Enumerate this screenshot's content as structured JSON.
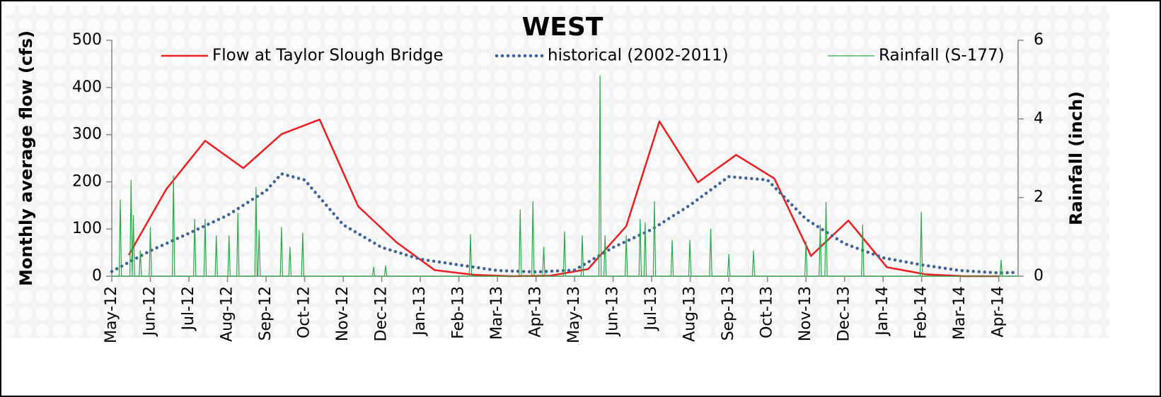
{
  "chart_data": {
    "type": "line",
    "title": "WEST",
    "ylabel": "Monthly average flow (cfs)",
    "y2label": "Rainfall (inch)",
    "xlim": [
      0,
      23.5
    ],
    "xticks": [
      {
        "value": 0,
        "label": "May-12"
      },
      {
        "value": 1,
        "label": "Jun-12"
      },
      {
        "value": 2,
        "label": "Jul-12"
      },
      {
        "value": 3,
        "label": "Aug-12"
      },
      {
        "value": 4,
        "label": "Sep-12"
      },
      {
        "value": 5,
        "label": "Oct-12"
      },
      {
        "value": 6,
        "label": "Nov-12"
      },
      {
        "value": 7,
        "label": "Dec-12"
      },
      {
        "value": 8,
        "label": "Jan-13"
      },
      {
        "value": 9,
        "label": "Feb-13"
      },
      {
        "value": 10,
        "label": "Mar-13"
      },
      {
        "value": 11,
        "label": "Apr-13"
      },
      {
        "value": 12,
        "label": "May-13"
      },
      {
        "value": 13,
        "label": "Jun-13"
      },
      {
        "value": 14,
        "label": "Jul-13"
      },
      {
        "value": 15,
        "label": "Aug-13"
      },
      {
        "value": 16,
        "label": "Sep-13"
      },
      {
        "value": 17,
        "label": "Oct-13"
      },
      {
        "value": 18,
        "label": "Nov-13"
      },
      {
        "value": 19,
        "label": "Dec-13"
      },
      {
        "value": 20,
        "label": "Jan-14"
      },
      {
        "value": 21,
        "label": "Feb-14"
      },
      {
        "value": 22,
        "label": "Mar-14"
      },
      {
        "value": 23,
        "label": "Apr-14"
      }
    ],
    "ylim": [
      0,
      500
    ],
    "yticks": [
      0,
      100,
      200,
      300,
      400,
      500
    ],
    "y2lim": [
      0,
      6
    ],
    "y2ticks": [
      0,
      2,
      4,
      6
    ],
    "legend": "top",
    "series": [
      {
        "name": "Flow at Taylor Slough Bridge",
        "color": "#ee1c1c",
        "line_style": "solid",
        "axis": "y",
        "x": [
          0.44,
          1.41,
          2.42,
          3.41,
          4.4,
          5.39,
          6.39,
          7.38,
          8.37,
          9.38,
          10.35,
          11.36,
          12.35,
          13.34,
          14.2,
          15.2,
          16.19,
          17.18,
          18.13,
          19.1,
          20.1,
          21.1,
          22.1,
          23.0
        ],
        "values": [
          45,
          184,
          287,
          229,
          301,
          332,
          148,
          72,
          13,
          3,
          0,
          1,
          15,
          106,
          328,
          199,
          257,
          207,
          43,
          118,
          19,
          4,
          0,
          0
        ]
      },
      {
        "name": "historical (2002-2011)",
        "color": "#3d6398",
        "line_style": "dotted",
        "axis": "y",
        "x": [
          0,
          1,
          2,
          3,
          4,
          4.4,
          5,
          6,
          7,
          8,
          9,
          10,
          11,
          12,
          13,
          14,
          15,
          16,
          17,
          18,
          19,
          20,
          21,
          22,
          23,
          23.5
        ],
        "values": [
          10,
          54,
          91,
          129,
          181,
          217,
          204,
          109,
          61,
          36,
          24,
          12,
          9,
          13,
          61,
          99,
          151,
          211,
          204,
          121,
          69,
          39,
          24,
          12,
          7,
          8
        ]
      },
      {
        "name": "Rainfall (S-177)",
        "color": "#2aa84a",
        "line_style": "thin",
        "axis": "y2",
        "x": [
          0,
          0.19,
          0.22,
          0.25,
          0.47,
          0.5,
          0.53,
          0.53,
          0.56,
          0.59,
          0.71,
          0.74,
          0.77,
          0.97,
          1.0,
          1.03,
          1.57,
          1.6,
          1.63,
          2.12,
          2.15,
          2.18,
          2.39,
          2.42,
          2.45,
          2.68,
          2.71,
          2.74,
          3.01,
          3.04,
          3.07,
          3.24,
          3.27,
          3.3,
          3.71,
          3.74,
          3.77,
          3.79,
          3.82,
          3.85,
          4.37,
          4.4,
          4.43,
          4.59,
          4.62,
          4.65,
          4.92,
          4.95,
          4.98,
          6.76,
          6.79,
          6.82,
          7.07,
          7.1,
          7.13,
          9.27,
          9.3,
          9.33,
          10.56,
          10.59,
          10.62,
          10.89,
          10.92,
          10.95,
          11.17,
          11.2,
          11.23,
          11.71,
          11.74,
          11.77,
          12.17,
          12.2,
          12.23,
          12.63,
          12.66,
          12.69,
          12.76,
          12.79,
          12.82,
          13.31,
          13.34,
          13.37,
          13.67,
          13.7,
          13.73,
          13.8,
          13.83,
          13.86,
          14.04,
          14.07,
          14.1,
          14.5,
          14.53,
          14.56,
          14.96,
          14.99,
          15.02,
          15.5,
          15.53,
          15.56,
          15.97,
          16.0,
          16.03,
          16.61,
          16.64,
          16.67,
          17.97,
          18.0,
          18.03,
          18.34,
          18.37,
          18.4,
          18.49,
          18.52,
          18.55,
          19.44,
          19.47,
          19.5,
          20.96,
          20.99,
          21.02,
          23.03,
          23.06,
          23.09,
          23.5
        ],
        "values": [
          0,
          0,
          1.94,
          0,
          0,
          2.44,
          0,
          0,
          1.54,
          0,
          0,
          0.65,
          0,
          0,
          1.24,
          0,
          0,
          2.55,
          0,
          0,
          1.45,
          0,
          0,
          1.45,
          0,
          0,
          1.03,
          0,
          0,
          1.03,
          0,
          0,
          1.6,
          0,
          0,
          2.26,
          0,
          0,
          1.17,
          0,
          0,
          1.24,
          0,
          0,
          0.74,
          0,
          0,
          1.1,
          0,
          0,
          0.23,
          0,
          0,
          0.27,
          0,
          0,
          1.06,
          0,
          0,
          1.69,
          0,
          0,
          1.9,
          0,
          0,
          0.74,
          0,
          0,
          1.13,
          0,
          0,
          1.03,
          0,
          0,
          5.1,
          0,
          0,
          1.03,
          0,
          0,
          1.03,
          0,
          0,
          1.45,
          0,
          0,
          1.36,
          0,
          0,
          1.9,
          0,
          0,
          0.92,
          0,
          0,
          0.92,
          0,
          0,
          1.2,
          0,
          0,
          0.56,
          0,
          0,
          0.65,
          0,
          0,
          0.88,
          0,
          0,
          1.31,
          0,
          0,
          1.88,
          0,
          0,
          1.31,
          0,
          0,
          1.63,
          0,
          0,
          0.41,
          0,
          0
        ]
      }
    ]
  }
}
